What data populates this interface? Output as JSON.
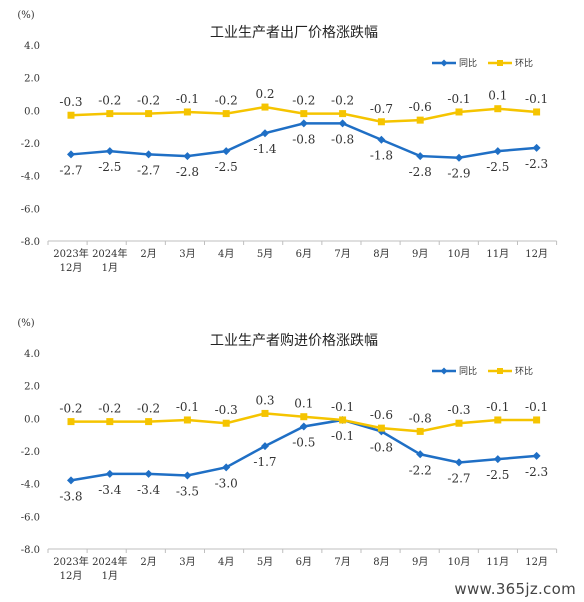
{
  "watermark": "www.365jz.com",
  "chart_data": [
    {
      "type": "line",
      "title": "工业生产者出厂价格涨跌幅",
      "unit": "(%)",
      "ylim": [
        -8.0,
        4.0
      ],
      "yticks": [
        "4.0",
        "2.0",
        "0.0",
        "-2.0",
        "-4.0",
        "-6.0",
        "-8.0"
      ],
      "grid": false,
      "legend_position": "top-right",
      "categories": [
        "2023年\n12月",
        "2024年\n1月",
        "2月",
        "3月",
        "4月",
        "5月",
        "6月",
        "7月",
        "8月",
        "9月",
        "10月",
        "11月",
        "12月"
      ],
      "series": [
        {
          "name": "同比",
          "color": "#1f6fc5",
          "values": [
            -2.7,
            -2.5,
            -2.7,
            -2.8,
            -2.5,
            -1.4,
            -0.8,
            -0.8,
            -1.8,
            -2.8,
            -2.9,
            -2.5,
            -2.3
          ],
          "labels": [
            "-2.7",
            "-2.5",
            "-2.7",
            "-2.8",
            "-2.5",
            "-1.4",
            "-0.8",
            "-0.8",
            "-1.8",
            "-2.8",
            "-2.9",
            "-2.5",
            "-2.3"
          ]
        },
        {
          "name": "环比",
          "color": "#f5c400",
          "values": [
            -0.3,
            -0.2,
            -0.2,
            -0.1,
            -0.2,
            0.2,
            -0.2,
            -0.2,
            -0.7,
            -0.6,
            -0.1,
            0.1,
            -0.1
          ],
          "labels": [
            "-0.3",
            "-0.2",
            "-0.2",
            "-0.1",
            "-0.2",
            "0.2",
            "-0.2",
            "-0.2",
            "-0.7",
            "-0.6",
            "-0.1",
            "0.1",
            "-0.1"
          ]
        }
      ]
    },
    {
      "type": "line",
      "title": "工业生产者购进价格涨跌幅",
      "unit": "(%)",
      "ylim": [
        -8.0,
        4.0
      ],
      "yticks": [
        "4.0",
        "2.0",
        "0.0",
        "-2.0",
        "-4.0",
        "-6.0",
        "-8.0"
      ],
      "grid": false,
      "legend_position": "top-right",
      "categories": [
        "2023年\n12月",
        "2024年\n1月",
        "2月",
        "3月",
        "4月",
        "5月",
        "6月",
        "7月",
        "8月",
        "9月",
        "10月",
        "11月",
        "12月"
      ],
      "series": [
        {
          "name": "同比",
          "color": "#1f6fc5",
          "values": [
            -3.8,
            -3.4,
            -3.4,
            -3.5,
            -3.0,
            -1.7,
            -0.5,
            -0.1,
            -0.8,
            -2.2,
            -2.7,
            -2.5,
            -2.3
          ],
          "labels": [
            "-3.8",
            "-3.4",
            "-3.4",
            "-3.5",
            "-3.0",
            "-1.7",
            "-0.5",
            "-0.1",
            "-0.8",
            "-2.2",
            "-2.7",
            "-2.5",
            "-2.3"
          ]
        },
        {
          "name": "环比",
          "color": "#f5c400",
          "values": [
            -0.2,
            -0.2,
            -0.2,
            -0.1,
            -0.3,
            0.3,
            0.1,
            -0.1,
            -0.6,
            -0.8,
            -0.3,
            -0.1,
            -0.1
          ],
          "labels": [
            "-0.2",
            "-0.2",
            "-0.2",
            "-0.1",
            "-0.3",
            "0.3",
            "0.1",
            "-0.1",
            "-0.6",
            "-0.8",
            "-0.3",
            "-0.1",
            "-0.1"
          ]
        }
      ]
    }
  ]
}
